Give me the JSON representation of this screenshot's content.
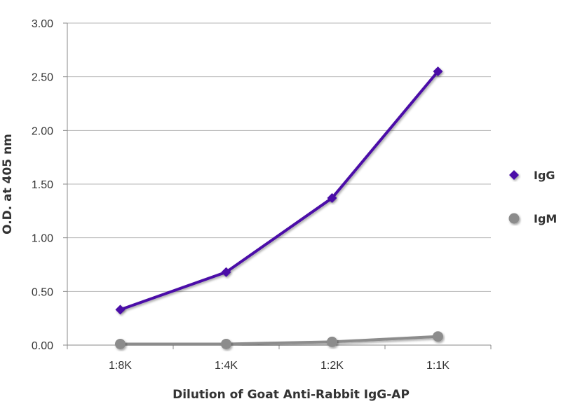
{
  "chart_data": {
    "type": "line",
    "xlabel": "Dilution of Goat Anti-Rabbit IgG-AP",
    "ylabel": "O.D. at 405 nm",
    "categories": [
      "1:8K",
      "1:4K",
      "1:2K",
      "1:1K"
    ],
    "ylim": [
      0,
      3
    ],
    "yticks": [
      0,
      0.5,
      1,
      1.5,
      2,
      2.5,
      3
    ],
    "ytick_labels": [
      "0.00",
      "0.50",
      "1.00",
      "1.50",
      "2.00",
      "2.50",
      "3.00"
    ],
    "grid": "horizontal",
    "legend_position": "right",
    "series": [
      {
        "name": "IgG",
        "values": [
          0.33,
          0.68,
          1.37,
          2.55
        ],
        "color": "#4B0FA8",
        "marker": "diamond"
      },
      {
        "name": "IgM",
        "values": [
          0.01,
          0.01,
          0.03,
          0.08
        ],
        "color": "#8C8C8C",
        "marker": "circle"
      }
    ]
  }
}
